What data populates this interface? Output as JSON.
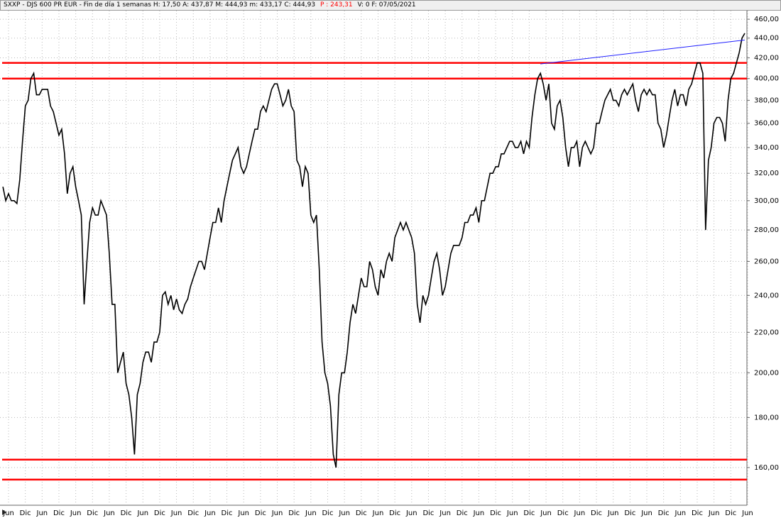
{
  "chart_data": {
    "type": "line",
    "title": "SXXP - DJS 600 PR EUR - Fin de día 1 semanas  H: 17,50  A: 437,87  M: 444,93  m: 433,17  C: 444,93",
    "title_highlight": "P : 243,31",
    "title_highlight_color": "#ff0000",
    "title_end": "V: 0  F: 07/05/2021",
    "log_scale": true,
    "grid": true,
    "ylim": [
      146.4,
      469.4
    ],
    "yticks": [
      {
        "value": 160,
        "label": "160,00"
      },
      {
        "value": 180,
        "label": "180,00"
      },
      {
        "value": 200,
        "label": "200,00"
      },
      {
        "value": 220,
        "label": "220,00"
      },
      {
        "value": 240,
        "label": "240,00"
      },
      {
        "value": 260,
        "label": "260,00"
      },
      {
        "value": 280,
        "label": "280,00"
      },
      {
        "value": 300,
        "label": "300,00"
      },
      {
        "value": 320,
        "label": "320,00"
      },
      {
        "value": 340,
        "label": "340,00"
      },
      {
        "value": 360,
        "label": "360,00"
      },
      {
        "value": 380,
        "label": "380,00"
      },
      {
        "value": 400,
        "label": "400,00"
      },
      {
        "value": 420,
        "label": "420,00"
      },
      {
        "value": 440,
        "label": "440,00"
      },
      {
        "value": 460,
        "label": "460,00"
      }
    ],
    "categories": [
      null,
      null,
      "Jun",
      null,
      null,
      null,
      null,
      null,
      "Dic",
      null,
      null,
      null,
      null,
      null,
      "Jun",
      null,
      null,
      null,
      null,
      null,
      "Dic",
      null,
      null,
      null,
      null,
      null,
      "Jun",
      null,
      null,
      null,
      null,
      null,
      "Dic",
      null,
      null,
      null,
      null,
      null,
      "Jun",
      null,
      null,
      null,
      null,
      null,
      "Dic",
      null,
      null,
      null,
      null,
      null,
      "Jun",
      null,
      null,
      null,
      null,
      null,
      "Dic",
      null,
      null,
      null,
      null,
      null,
      "Jun",
      null,
      null,
      null,
      null,
      null,
      "Dic",
      null,
      null,
      null,
      null,
      null,
      "Jun",
      null,
      null,
      null,
      null,
      null,
      "Dic",
      null,
      null,
      null,
      null,
      null,
      "Jun",
      null,
      null,
      null,
      null,
      null,
      "Dic",
      null,
      null,
      null,
      null,
      null,
      "Jun",
      null,
      null,
      null,
      null,
      null,
      "Dic",
      null,
      null,
      null,
      null,
      null,
      "Jun",
      null,
      null,
      null,
      null,
      null,
      "Dic",
      null,
      null,
      null,
      null,
      null,
      "Jun",
      null,
      null,
      null,
      null,
      null,
      "Dic",
      null,
      null,
      null,
      null,
      null,
      "Jun",
      null,
      null,
      null,
      null,
      null,
      "Dic",
      null,
      null,
      null,
      null,
      null,
      "Jun",
      null,
      null,
      null,
      null,
      null,
      "Dic",
      null,
      null,
      null,
      null,
      null,
      "Jun",
      null,
      null,
      null,
      null,
      null,
      "Dic",
      null,
      null,
      null,
      null,
      null,
      "Jun",
      null,
      null,
      null,
      null,
      null,
      "Dic",
      null,
      null,
      null,
      null,
      null,
      "Jun",
      null,
      null,
      null,
      null,
      null,
      "Dic",
      null,
      null,
      null,
      null,
      null,
      "Jun",
      null,
      null,
      null,
      null,
      null,
      "Dic",
      null,
      null,
      null,
      null,
      null,
      "Jun",
      null,
      null,
      null,
      null,
      null,
      "Dic",
      null,
      null,
      null,
      null,
      null,
      "Jun",
      null,
      null,
      null,
      null,
      null,
      "Dic",
      null,
      null,
      null,
      null,
      null,
      "Jun",
      null,
      null,
      null,
      null,
      null,
      "Dic",
      null,
      null,
      null,
      null,
      null,
      "Jun",
      null,
      null,
      null,
      null,
      null,
      "Dic",
      null,
      null,
      null,
      null,
      null,
      "Jun",
      null,
      null,
      null,
      null,
      null,
      "Dic",
      null,
      null,
      null,
      null,
      null,
      "Jun"
    ],
    "series": [
      {
        "color": "#000000",
        "values": [
          310,
          300,
          305,
          300,
          300,
          298,
          315,
          345,
          375,
          380,
          400,
          405,
          385,
          385,
          390,
          390,
          390,
          375,
          370,
          360,
          350,
          355,
          335,
          305,
          320,
          325,
          310,
          300,
          290,
          235,
          260,
          285,
          295,
          290,
          290,
          300,
          295,
          290,
          265,
          235,
          235,
          200,
          205,
          210,
          195,
          190,
          180,
          165,
          190,
          195,
          205,
          210,
          210,
          205,
          215,
          215,
          220,
          240,
          242,
          235,
          240,
          232,
          238,
          232,
          230,
          235,
          238,
          245,
          250,
          255,
          260,
          260,
          255,
          265,
          275,
          285,
          285,
          295,
          285,
          300,
          310,
          320,
          330,
          335,
          340,
          325,
          320,
          325,
          335,
          345,
          355,
          355,
          370,
          375,
          370,
          380,
          390,
          395,
          395,
          385,
          375,
          380,
          390,
          375,
          370,
          330,
          325,
          310,
          325,
          320,
          290,
          285,
          290,
          255,
          215,
          200,
          195,
          185,
          165,
          160,
          190,
          200,
          200,
          210,
          225,
          235,
          230,
          240,
          250,
          245,
          245,
          260,
          255,
          245,
          240,
          255,
          250,
          260,
          265,
          260,
          275,
          280,
          285,
          280,
          285,
          280,
          275,
          265,
          235,
          225,
          240,
          235,
          240,
          250,
          260,
          265,
          255,
          240,
          245,
          255,
          265,
          270,
          270,
          270,
          275,
          285,
          285,
          290,
          290,
          295,
          285,
          300,
          300,
          310,
          320,
          320,
          325,
          325,
          335,
          335,
          340,
          345,
          345,
          340,
          340,
          345,
          335,
          345,
          340,
          365,
          385,
          400,
          405,
          395,
          380,
          395,
          360,
          355,
          375,
          380,
          365,
          340,
          325,
          340,
          340,
          345,
          325,
          340,
          345,
          340,
          335,
          340,
          360,
          360,
          370,
          380,
          385,
          390,
          380,
          380,
          375,
          385,
          390,
          385,
          390,
          395,
          380,
          370,
          385,
          390,
          385,
          390,
          385,
          385,
          360,
          355,
          340,
          350,
          365,
          380,
          390,
          375,
          385,
          385,
          375,
          390,
          395,
          405,
          415,
          415,
          405,
          280,
          330,
          340,
          360,
          365,
          365,
          360,
          345,
          380,
          400,
          405,
          415,
          425,
          440,
          445,
          null
        ]
      }
    ],
    "hlines": [
      {
        "value": 415,
        "color": "#ff0000"
      },
      {
        "value": 400,
        "color": "#ff0000"
      },
      {
        "value": 163,
        "color": "#ff0000"
      },
      {
        "value": 155.5,
        "color": "#ff0000"
      }
    ],
    "trendline": {
      "color": "#1f1fff",
      "points": [
        [
          192,
          414
        ],
        [
          265,
          438
        ]
      ]
    }
  }
}
